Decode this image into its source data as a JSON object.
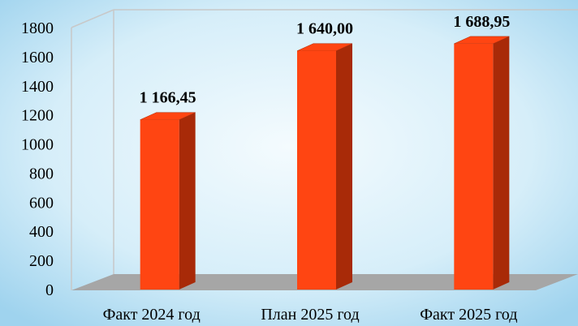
{
  "chart_data": {
    "type": "bar3d",
    "categories": [
      "Факт 2024 год",
      "План 2025 год",
      "Факт 2025 год"
    ],
    "values": [
      1166.45,
      1640.0,
      1688.95
    ],
    "value_labels": [
      "1 166,45",
      "1 640,00",
      "1 688,95"
    ],
    "color": "#ff4512",
    "side_color": "#a82a08",
    "ylim": [
      0,
      1800
    ],
    "yticks": [
      0,
      200,
      400,
      600,
      800,
      1000,
      1200,
      1400,
      1600,
      1800
    ],
    "grid": false
  }
}
